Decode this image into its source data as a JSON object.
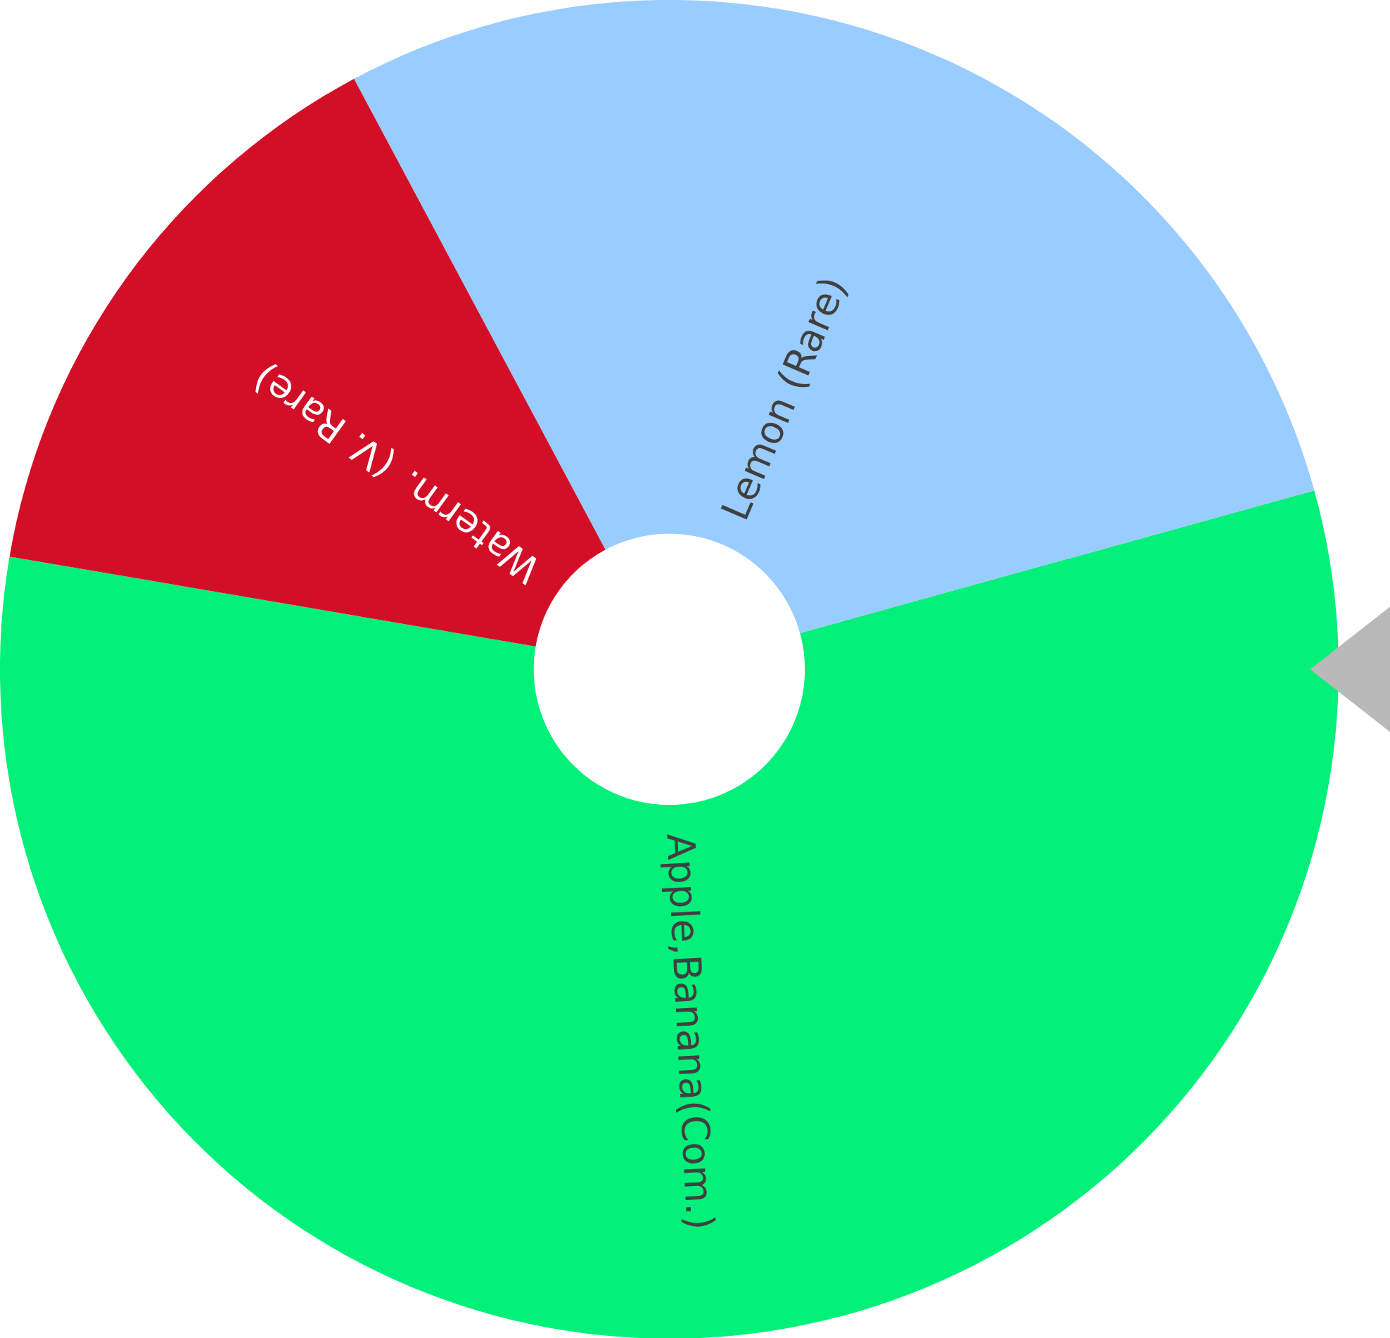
{
  "chart_data": {
    "type": "donut",
    "categories": [
      "Apple,Banana(Com.)",
      "Lemon (Rare)",
      "Waterm. (V. Rare)"
    ],
    "values": [
      57,
      28.5,
      14.5
    ],
    "colors": [
      "#00f07a",
      "#99ccff",
      "#d20f27"
    ]
  }
}
